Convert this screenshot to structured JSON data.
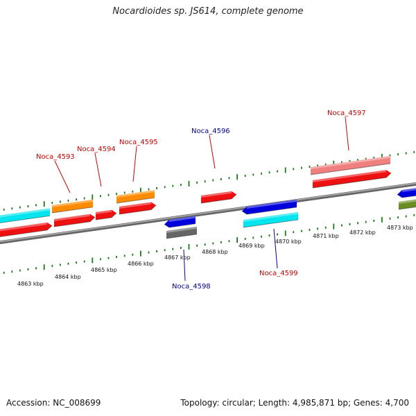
{
  "header": {
    "title": "Nocardioides sp. JS614, complete genome"
  },
  "footer": {
    "accession": "Accession: NC_008699",
    "topology": "Topology: circular; Length: 4,985,871 bp; Genes: 4,700"
  },
  "genome_map": {
    "scale_labels": [
      "4863 kbp",
      "4864 kbp",
      "4865 kbp",
      "4866 kbp",
      "4867 kbp",
      "4868 kbp",
      "4869 kbp",
      "4870 kbp",
      "4871 kbp",
      "4872 kbp",
      "4873 kbp"
    ],
    "gene_labels": [
      {
        "text": "Noca_4593",
        "strand": "forward"
      },
      {
        "text": "Noca_4594",
        "strand": "forward"
      },
      {
        "text": "Noca_4595",
        "strand": "forward"
      },
      {
        "text": "Noca_4596",
        "strand": "reverse"
      },
      {
        "text": "Noca_4597",
        "strand": "forward"
      },
      {
        "text": "Noca_4598",
        "strand": "reverse"
      },
      {
        "text": "Noca_4599",
        "strand": "forward"
      }
    ],
    "colors": {
      "forward_label": "#cc0000",
      "reverse_label": "#000099",
      "ticks": "#1a7a1a",
      "backbone": "#888888",
      "red": "#ee1111",
      "orange": "#ff8c00",
      "cyan": "#00e5ee",
      "blue": "#0000dd",
      "gray": "#666666",
      "pink": "#f08080",
      "olive": "#6b8e23"
    }
  }
}
